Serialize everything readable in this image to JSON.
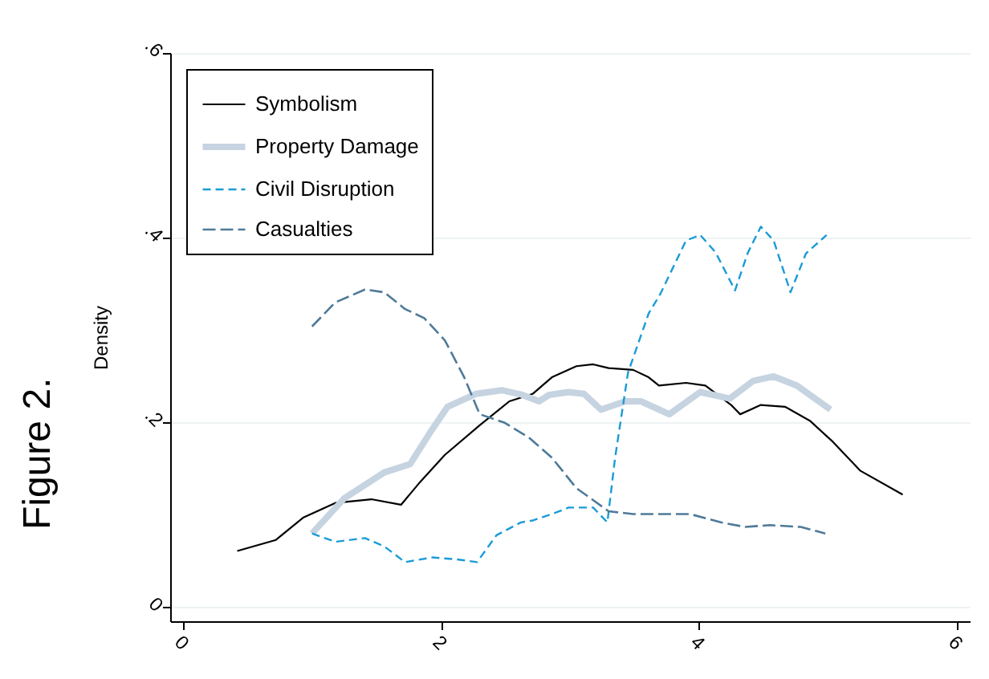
{
  "chart_data": {
    "type": "line",
    "ylabel": "Density",
    "annotations": [
      "Figure 2."
    ],
    "xlim": [
      -0.1,
      6.1
    ],
    "xticks": [
      0,
      2,
      4,
      6
    ],
    "ylim": [
      -0.015,
      0.6
    ],
    "yticks": [
      0,
      {
        "value": 0.2,
        "label": ".2"
      },
      {
        "value": 0.4,
        "label": ".4"
      },
      {
        "value": 0.6,
        "label": ".6"
      }
    ],
    "grid": "y",
    "legend": "top left",
    "series": [
      {
        "name": "Symbolism",
        "color": "#000000",
        "line_style": "solid",
        "x": [
          0.42,
          0.72,
          0.93,
          1.18,
          1.46,
          1.69,
          1.84,
          2.03,
          2.3,
          2.53,
          2.71,
          2.86,
          3.05,
          3.18,
          3.3,
          3.49,
          3.61,
          3.69,
          3.9,
          4.05,
          4.25,
          4.32,
          4.48,
          4.67,
          4.86,
          5.04,
          5.25,
          5.58
        ],
        "values": [
          0.061,
          0.073,
          0.097,
          0.113,
          0.117,
          0.111,
          0.136,
          0.165,
          0.197,
          0.223,
          0.231,
          0.249,
          0.261,
          0.263,
          0.259,
          0.257,
          0.249,
          0.24,
          0.243,
          0.24,
          0.219,
          0.209,
          0.219,
          0.217,
          0.202,
          0.179,
          0.148,
          0.122
        ]
      },
      {
        "name": "Property Damage",
        "color": "#c6d3e0",
        "line_style": "solid",
        "x": [
          1.0,
          1.25,
          1.56,
          1.76,
          1.91,
          2.05,
          2.27,
          2.47,
          2.63,
          2.76,
          2.84,
          2.99,
          3.11,
          3.24,
          3.43,
          3.55,
          3.77,
          4.01,
          4.24,
          4.42,
          4.58,
          4.76,
          5.02
        ],
        "values": [
          0.08,
          0.118,
          0.146,
          0.155,
          0.188,
          0.217,
          0.231,
          0.235,
          0.23,
          0.223,
          0.23,
          0.233,
          0.231,
          0.214,
          0.223,
          0.223,
          0.209,
          0.233,
          0.226,
          0.245,
          0.25,
          0.24,
          0.214
        ]
      },
      {
        "name": "Civil Disruption",
        "color": "#1a9bd7",
        "line_style": "dashed",
        "x": [
          1.0,
          1.18,
          1.41,
          1.56,
          1.72,
          1.93,
          2.12,
          2.28,
          2.43,
          2.62,
          2.71,
          2.86,
          2.99,
          3.18,
          3.29,
          3.35,
          3.45,
          3.61,
          3.7,
          3.9,
          4.01,
          4.13,
          4.28,
          4.38,
          4.48,
          4.58,
          4.71,
          4.83,
          4.99
        ],
        "values": [
          0.08,
          0.071,
          0.075,
          0.066,
          0.049,
          0.054,
          0.052,
          0.049,
          0.078,
          0.092,
          0.094,
          0.101,
          0.108,
          0.108,
          0.092,
          0.162,
          0.254,
          0.318,
          0.339,
          0.397,
          0.403,
          0.384,
          0.343,
          0.384,
          0.412,
          0.397,
          0.341,
          0.383,
          0.403
        ]
      },
      {
        "name": "Casualties",
        "color": "#4f7a99",
        "line_style": "dashed",
        "x": [
          1.0,
          1.18,
          1.41,
          1.56,
          1.72,
          1.87,
          2.03,
          2.18,
          2.3,
          2.49,
          2.68,
          2.86,
          3.05,
          3.3,
          3.49,
          3.74,
          3.93,
          4.17,
          4.36,
          4.55,
          4.79,
          4.98
        ],
        "values": [
          0.304,
          0.33,
          0.344,
          0.341,
          0.323,
          0.313,
          0.289,
          0.249,
          0.209,
          0.2,
          0.184,
          0.162,
          0.129,
          0.104,
          0.101,
          0.101,
          0.101,
          0.092,
          0.087,
          0.089,
          0.087,
          0.08
        ]
      }
    ]
  }
}
